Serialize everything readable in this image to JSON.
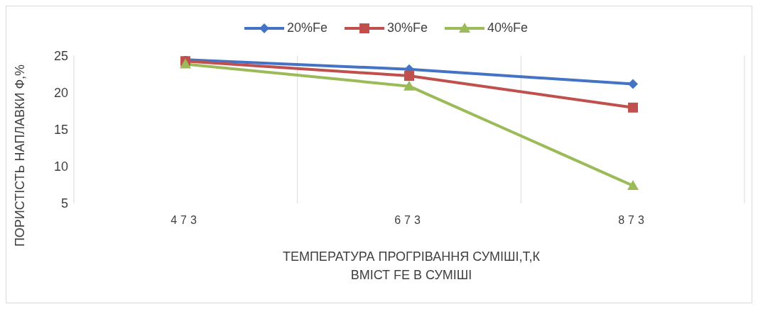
{
  "chart_data": {
    "type": "line",
    "categories": [
      "473",
      "673",
      "873"
    ],
    "series": [
      {
        "name": "20%Fe",
        "color": "#4472c4",
        "values": [
          24.5,
          23.2,
          21.2
        ],
        "marker": "diamond"
      },
      {
        "name": "30%Fe",
        "color": "#c0504d",
        "values": [
          24.3,
          22.3,
          18.0
        ],
        "marker": "square"
      },
      {
        "name": "40%Fe",
        "color": "#9bbb59",
        "values": [
          23.9,
          20.9,
          7.4
        ],
        "marker": "triangle"
      }
    ],
    "xlabel": "ТЕМПЕРАТУРА ПРОГРІВАННЯ СУМІШІ,Т,К\nВМІСТ FE В СУМІШІ",
    "ylabel": "ПОРИСТІСТЬ НАПЛАВКИ Ф,%",
    "ylim": [
      5,
      25
    ],
    "yticks": [
      5,
      10,
      15,
      20,
      25
    ],
    "grid": "x",
    "legend": "top"
  }
}
